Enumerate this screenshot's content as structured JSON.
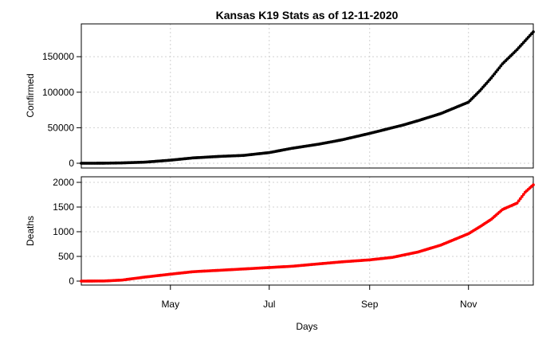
{
  "chart_data": {
    "type": "scatter",
    "title": "Kansas K19 Stats as of 12-11-2020",
    "xlabel": "Days",
    "x_ticks": [
      "May",
      "Jul",
      "Sep",
      "Nov"
    ],
    "x_range": [
      "2020-03-07",
      "2020-12-11"
    ],
    "grid": true,
    "panels": [
      {
        "name": "confirmed",
        "ylabel": "Confirmed",
        "color": "#000000",
        "ylim": [
          0,
          190000
        ],
        "y_ticks": [
          "0",
          "50000",
          "100000",
          "150000"
        ],
        "points": [
          [
            "2020-03-07",
            0
          ],
          [
            "2020-03-21",
            60
          ],
          [
            "2020-04-01",
            480
          ],
          [
            "2020-04-15",
            1500
          ],
          [
            "2020-05-01",
            4300
          ],
          [
            "2020-05-15",
            7500
          ],
          [
            "2020-06-01",
            9700
          ],
          [
            "2020-06-15",
            11000
          ],
          [
            "2020-07-01",
            15000
          ],
          [
            "2020-07-15",
            21000
          ],
          [
            "2020-08-01",
            27000
          ],
          [
            "2020-08-15",
            33000
          ],
          [
            "2020-09-01",
            42000
          ],
          [
            "2020-09-15",
            50000
          ],
          [
            "2020-09-22",
            54000
          ],
          [
            "2020-10-01",
            60000
          ],
          [
            "2020-10-15",
            70000
          ],
          [
            "2020-11-01",
            86000
          ],
          [
            "2020-11-08",
            102000
          ],
          [
            "2020-11-15",
            120000
          ],
          [
            "2020-11-22",
            140000
          ],
          [
            "2020-12-01",
            160000
          ],
          [
            "2020-12-11",
            185000
          ]
        ]
      },
      {
        "name": "deaths",
        "ylabel": "Deaths",
        "color": "#ff0000",
        "ylim": [
          0,
          2050
        ],
        "y_ticks": [
          "0",
          "500",
          "1000",
          "1500",
          "2000"
        ],
        "points": [
          [
            "2020-03-07",
            0
          ],
          [
            "2020-03-21",
            2
          ],
          [
            "2020-04-01",
            20
          ],
          [
            "2020-04-15",
            80
          ],
          [
            "2020-05-01",
            140
          ],
          [
            "2020-05-15",
            190
          ],
          [
            "2020-06-01",
            220
          ],
          [
            "2020-06-15",
            245
          ],
          [
            "2020-07-01",
            275
          ],
          [
            "2020-07-15",
            300
          ],
          [
            "2020-08-01",
            350
          ],
          [
            "2020-08-15",
            390
          ],
          [
            "2020-09-01",
            430
          ],
          [
            "2020-09-15",
            480
          ],
          [
            "2020-10-01",
            590
          ],
          [
            "2020-10-15",
            730
          ],
          [
            "2020-11-01",
            960
          ],
          [
            "2020-11-08",
            1100
          ],
          [
            "2020-11-15",
            1250
          ],
          [
            "2020-11-22",
            1450
          ],
          [
            "2020-12-01",
            1580
          ],
          [
            "2020-12-06",
            1800
          ],
          [
            "2020-12-11",
            1950
          ]
        ]
      }
    ]
  }
}
